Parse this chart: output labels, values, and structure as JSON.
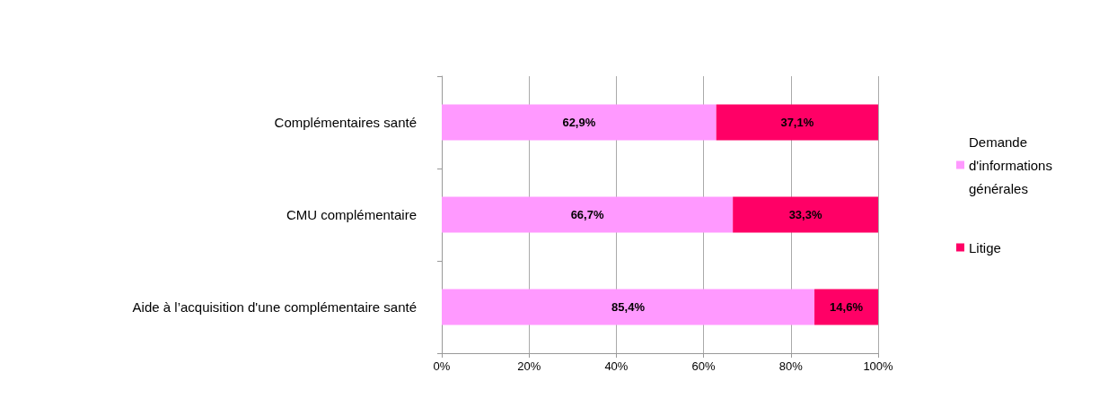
{
  "chart_data": {
    "type": "bar",
    "orientation": "horizontal",
    "stacked": true,
    "categories": [
      "Complémentaires santé",
      "CMU complémentaire",
      "Aide à l’acquisition d'une complémentaire santé"
    ],
    "series": [
      {
        "name": "Demande d'informations générales",
        "color": "#ff99ff",
        "values": [
          62.9,
          66.7,
          85.4
        ],
        "value_labels": [
          "62,9%",
          "66,7%",
          "85,4%"
        ]
      },
      {
        "name": "Litige",
        "color": "#ff0066",
        "values": [
          37.1,
          33.3,
          14.6
        ],
        "value_labels": [
          "37,1%",
          "33,3%",
          "14,6%"
        ]
      }
    ],
    "xlim": [
      0,
      100
    ],
    "xticks": [
      {
        "value": 0,
        "label": "0%"
      },
      {
        "value": 20,
        "label": "20%"
      },
      {
        "value": 40,
        "label": "40%"
      },
      {
        "value": 60,
        "label": "60%"
      },
      {
        "value": 80,
        "label": "80%"
      },
      {
        "value": 100,
        "label": "100%"
      }
    ],
    "grid": "x",
    "legend": "right"
  }
}
